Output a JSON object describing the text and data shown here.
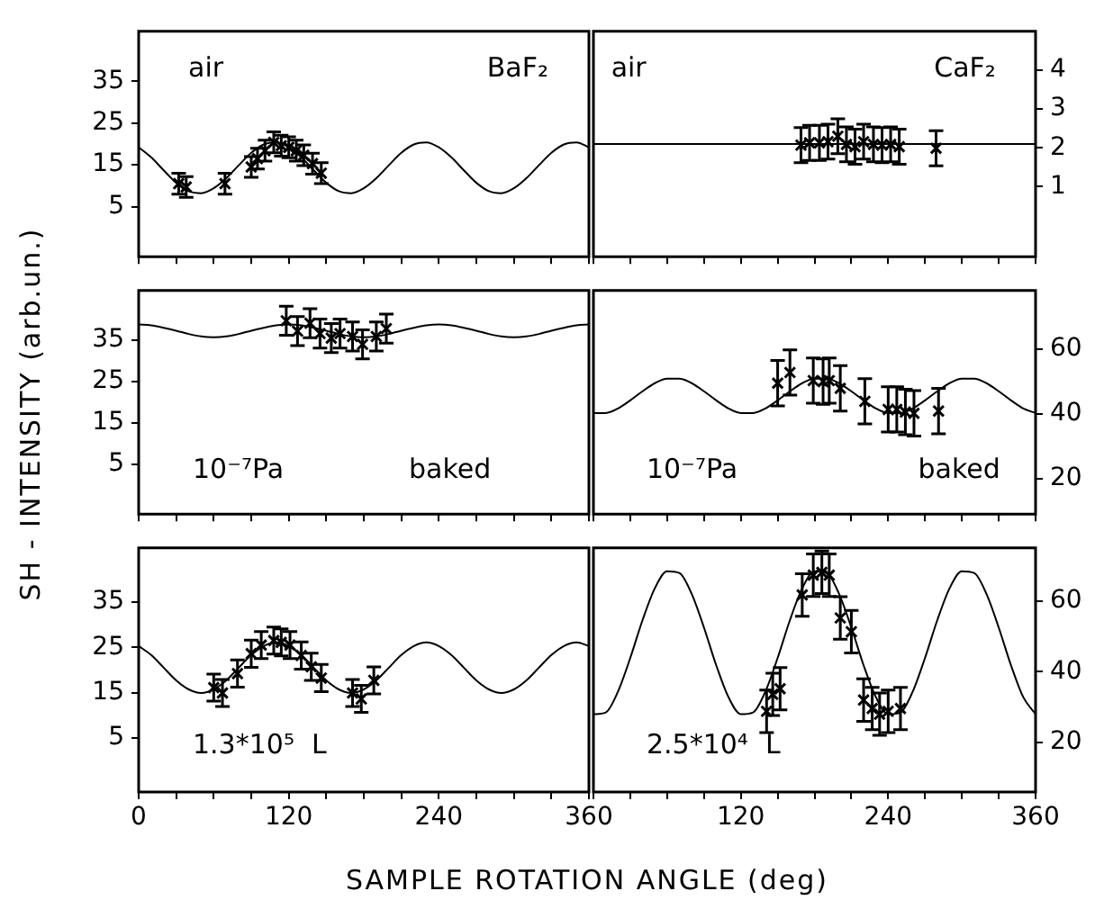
{
  "chart_data": [
    {
      "type": "scatter",
      "xlim": [
        0,
        360
      ],
      "xticks": [
        0,
        {
          "value": 30,
          "label": null
        },
        {
          "value": 60,
          "label": null
        },
        {
          "value": 90,
          "label": null
        },
        120,
        {
          "value": 150,
          "label": null
        },
        {
          "value": 180,
          "label": null
        },
        {
          "value": 210,
          "label": null
        },
        240,
        {
          "value": 270,
          "label": null
        },
        {
          "value": 300,
          "label": null
        },
        {
          "value": 330,
          "label": null
        },
        360
      ],
      "ylim": [
        -7,
        47
      ],
      "yticks": [
        5,
        15,
        25,
        35
      ],
      "tick_labels": "y",
      "annotations": [
        "air",
        "BaF₂"
      ],
      "series": [
        {
          "marker": "cross",
          "color": "#000000",
          "x": [
            32,
            38,
            69,
            90,
            95,
            101,
            108,
            114,
            120,
            126,
            132,
            139,
            146
          ],
          "values": [
            10.5,
            9.7,
            10.5,
            14.5,
            16.5,
            18.4,
            20.4,
            19.6,
            19.2,
            18.4,
            17.3,
            15.3,
            13.0
          ],
          "errors": [
            2.5,
            2.5,
            2.5,
            2.5,
            2.5,
            2.5,
            2.5,
            2.5,
            2.5,
            2.5,
            2.5,
            2.5,
            2.5
          ]
        },
        {
          "type": "line",
          "color": "#000000",
          "x": [
            0,
            10,
            20,
            30,
            40,
            50,
            60,
            70,
            80,
            90,
            100,
            110,
            120,
            130,
            140,
            150,
            160,
            170,
            180,
            190,
            200,
            210,
            220,
            230,
            240,
            250,
            260,
            270,
            280,
            290,
            300,
            310,
            320,
            330,
            340,
            350,
            360
          ],
          "values": [
            19.2,
            16.8,
            13.7,
            10.7,
            8.7,
            8.2,
            9.4,
            11.8,
            14.9,
            17.9,
            19.9,
            20.4,
            19.2,
            16.8,
            13.7,
            10.7,
            8.7,
            8.2,
            9.4,
            11.8,
            14.9,
            17.9,
            19.9,
            20.4,
            19.2,
            16.8,
            13.7,
            10.7,
            8.7,
            8.2,
            9.4,
            11.8,
            14.9,
            17.9,
            19.9,
            20.4,
            19.2
          ]
        }
      ]
    },
    {
      "type": "scatter",
      "xlim": [
        0,
        360
      ],
      "xticks": [
        0,
        {
          "value": 30,
          "label": null
        },
        {
          "value": 60,
          "label": null
        },
        {
          "value": 90,
          "label": null
        },
        120,
        {
          "value": 150,
          "label": null
        },
        {
          "value": 180,
          "label": null
        },
        {
          "value": 210,
          "label": null
        },
        240,
        {
          "value": 270,
          "label": null
        },
        {
          "value": 300,
          "label": null
        },
        {
          "value": 330,
          "label": null
        },
        360
      ],
      "ylim": [
        -0.8,
        5
      ],
      "yticks": [
        1,
        2,
        3,
        4
      ],
      "tick_labels": "y",
      "annotations": [
        "air",
        "CaF₂"
      ],
      "series": [
        {
          "marker": "cross",
          "color": "#000000",
          "x": [
            169,
            176,
            184,
            191,
            199,
            206,
            213,
            220,
            228,
            235,
            242,
            249,
            279
          ],
          "values": [
            2.07,
            2.13,
            2.13,
            2.16,
            2.3,
            2.09,
            2.03,
            2.16,
            2.09,
            2.07,
            2.09,
            2.03,
            1.99
          ],
          "errors": [
            0.45,
            0.45,
            0.45,
            0.45,
            0.45,
            0.45,
            0.45,
            0.45,
            0.45,
            0.45,
            0.45,
            0.45,
            0.45
          ]
        },
        {
          "type": "line",
          "color": "#000000",
          "x": [
            0,
            360
          ],
          "values": [
            2.1,
            2.1
          ]
        }
      ]
    },
    {
      "type": "scatter",
      "xlim": [
        0,
        360
      ],
      "xticks": [
        0,
        {
          "value": 30,
          "label": null
        },
        {
          "value": 60,
          "label": null
        },
        {
          "value": 90,
          "label": null
        },
        120,
        {
          "value": 150,
          "label": null
        },
        {
          "value": 180,
          "label": null
        },
        {
          "value": 210,
          "label": null
        },
        240,
        {
          "value": 270,
          "label": null
        },
        {
          "value": 300,
          "label": null
        },
        {
          "value": 330,
          "label": null
        },
        360
      ],
      "ylim": [
        -7,
        47
      ],
      "yticks": [
        5,
        15,
        25,
        35
      ],
      "tick_labels": "y",
      "ylabel": "SH - INTENSITY  (arb.un.)",
      "annotations": [
        "10⁻⁷Pa",
        "baked"
      ],
      "series": [
        {
          "marker": "cross",
          "color": "#000000",
          "x": [
            118,
            127,
            137,
            145,
            154,
            161,
            171,
            179,
            190,
            198
          ],
          "values": [
            39.7,
            37.2,
            39.1,
            36.6,
            35.5,
            36.6,
            35.9,
            34.0,
            35.9,
            37.8
          ],
          "errors": [
            3.5,
            3.5,
            3.5,
            3.5,
            3.5,
            3.5,
            3.5,
            3.5,
            3.5,
            3.5
          ]
        },
        {
          "type": "line",
          "color": "#000000",
          "x": [
            0,
            10,
            20,
            30,
            40,
            50,
            60,
            70,
            80,
            90,
            100,
            110,
            120,
            130,
            140,
            150,
            160,
            170,
            180,
            190,
            200,
            210,
            220,
            230,
            240,
            250,
            260,
            270,
            280,
            290,
            300,
            310,
            320,
            330,
            340,
            350,
            360
          ],
          "values": [
            38.8,
            38.6,
            38.0,
            37.3,
            36.5,
            35.9,
            35.7,
            35.9,
            36.5,
            37.3,
            38.0,
            38.6,
            38.8,
            38.6,
            38.0,
            37.3,
            36.5,
            35.9,
            35.7,
            35.9,
            36.5,
            37.3,
            38.0,
            38.6,
            38.8,
            38.6,
            38.0,
            37.3,
            36.5,
            35.9,
            35.7,
            35.9,
            36.5,
            37.3,
            38.0,
            38.6,
            38.8
          ]
        }
      ]
    },
    {
      "type": "scatter",
      "xlim": [
        0,
        360
      ],
      "xticks": [
        0,
        {
          "value": 30,
          "label": null
        },
        {
          "value": 60,
          "label": null
        },
        {
          "value": 90,
          "label": null
        },
        120,
        {
          "value": 150,
          "label": null
        },
        {
          "value": 180,
          "label": null
        },
        {
          "value": 210,
          "label": null
        },
        240,
        {
          "value": 270,
          "label": null
        },
        {
          "value": 300,
          "label": null
        },
        {
          "value": 330,
          "label": null
        },
        360
      ],
      "ylim": [
        9,
        78
      ],
      "yticks": [
        20,
        40,
        60
      ],
      "tick_labels": "y",
      "annotations": [
        "10⁻⁷Pa",
        "baked"
      ],
      "series": [
        {
          "marker": "cross",
          "color": "#000000",
          "x": [
            150,
            160,
            179,
            187,
            192,
            201,
            221,
            240,
            247,
            254,
            261,
            281
          ],
          "values": [
            49.4,
            52.7,
            50.2,
            49.9,
            50.2,
            47.8,
            43.8,
            41.3,
            41.3,
            40.5,
            40.1,
            40.8
          ],
          "errors": [
            7,
            7,
            7,
            7,
            7,
            7,
            7,
            7,
            7,
            7,
            7,
            7
          ]
        },
        {
          "type": "line",
          "color": "#000000",
          "x": [
            0,
            10,
            20,
            30,
            40,
            50,
            60,
            70,
            80,
            90,
            100,
            110,
            120,
            130,
            140,
            150,
            160,
            170,
            180,
            190,
            200,
            210,
            220,
            230,
            240,
            250,
            260,
            270,
            280,
            290,
            300,
            310,
            320,
            330,
            340,
            350,
            360
          ],
          "values": [
            40.2,
            40.2,
            41.6,
            44.1,
            46.9,
            49.4,
            50.8,
            50.8,
            49.4,
            46.9,
            44.1,
            41.6,
            40.2,
            40.2,
            41.6,
            44.1,
            46.9,
            49.4,
            50.8,
            50.8,
            49.4,
            46.9,
            44.1,
            41.6,
            40.2,
            40.2,
            41.6,
            44.1,
            46.9,
            49.4,
            50.8,
            50.8,
            49.4,
            46.9,
            44.1,
            41.6,
            40.2
          ]
        }
      ]
    },
    {
      "type": "scatter",
      "xlim": [
        0,
        360
      ],
      "xticks": [
        0,
        {
          "value": 30,
          "label": null
        },
        {
          "value": 60,
          "label": null
        },
        {
          "value": 90,
          "label": null
        },
        120,
        {
          "value": 150,
          "label": null
        },
        {
          "value": 180,
          "label": null
        },
        {
          "value": 210,
          "label": null
        },
        240,
        {
          "value": 270,
          "label": null
        },
        {
          "value": 300,
          "label": null
        },
        {
          "value": 330,
          "label": null
        },
        360
      ],
      "ylim": [
        -7,
        47
      ],
      "yticks": [
        5,
        15,
        25,
        35
      ],
      "xlabel": "SAMPLE ROTATION ANGLE (deg)",
      "annotations": [
        "1.3*10⁵  L"
      ],
      "series": [
        {
          "marker": "cross",
          "color": "#000000",
          "x": [
            60,
            67,
            79,
            90,
            98,
            108,
            114,
            121,
            130,
            138,
            146,
            171,
            178,
            188
          ],
          "values": [
            16.1,
            14.9,
            19.2,
            23.6,
            25.5,
            26.5,
            26.1,
            25.5,
            23.2,
            20.7,
            18.2,
            14.9,
            13.6,
            17.7
          ],
          "errors": [
            3,
            3,
            3,
            3,
            3,
            3,
            3,
            3,
            3,
            3,
            3,
            3,
            3,
            3
          ]
        },
        {
          "type": "line",
          "color": "#000000",
          "x": [
            0,
            10,
            20,
            30,
            40,
            50,
            60,
            70,
            80,
            90,
            100,
            110,
            120,
            130,
            140,
            150,
            160,
            170,
            180,
            190,
            200,
            210,
            220,
            230,
            240,
            250,
            260,
            270,
            280,
            290,
            300,
            310,
            320,
            330,
            340,
            350,
            360
          ],
          "values": [
            25.3,
            23.3,
            20.5,
            17.7,
            15.7,
            14.9,
            15.7,
            17.7,
            20.5,
            23.3,
            25.3,
            26.1,
            25.3,
            23.3,
            20.5,
            17.7,
            15.7,
            14.9,
            15.7,
            17.7,
            20.5,
            23.3,
            25.3,
            26.1,
            25.3,
            23.3,
            20.5,
            17.7,
            15.7,
            14.9,
            15.7,
            17.7,
            20.5,
            23.3,
            25.3,
            26.1,
            25.3
          ]
        }
      ]
    },
    {
      "type": "scatter",
      "xlim": [
        0,
        360
      ],
      "xticks": [
        {
          "value": 0,
          "label": null
        },
        {
          "value": 30,
          "label": null
        },
        {
          "value": 60,
          "label": null
        },
        {
          "value": 90,
          "label": null
        },
        120,
        {
          "value": 150,
          "label": null
        },
        {
          "value": 180,
          "label": null
        },
        {
          "value": 210,
          "label": null
        },
        240,
        {
          "value": 270,
          "label": null
        },
        {
          "value": 300,
          "label": null
        },
        {
          "value": 330,
          "label": null
        },
        360
      ],
      "ylim": [
        6,
        75
      ],
      "yticks": [
        20,
        40,
        60
      ],
      "annotations": [
        "2.5*10⁴  L"
      ],
      "series": [
        {
          "marker": "cross",
          "color": "#000000",
          "x": [
            141,
            146,
            152,
            170,
            179,
            186,
            192,
            201,
            210,
            220,
            227,
            233,
            240,
            250
          ],
          "values": [
            28.8,
            33.6,
            35.2,
            61.7,
            67.3,
            68.1,
            67.3,
            55.2,
            51.3,
            32.0,
            29.6,
            28.0,
            28.8,
            29.6
          ],
          "errors": [
            6,
            6,
            6,
            6,
            6,
            6,
            6,
            6,
            6,
            6,
            6,
            6,
            6,
            6
          ]
        },
        {
          "type": "line",
          "color": "#000000",
          "x": [
            0,
            10,
            20,
            30,
            40,
            50,
            60,
            70,
            80,
            90,
            100,
            110,
            120,
            130,
            140,
            150,
            160,
            170,
            180,
            190,
            200,
            210,
            220,
            230,
            240,
            250,
            260,
            270,
            280,
            290,
            300,
            310,
            320,
            330,
            340,
            350,
            360
          ],
          "values": [
            28.0,
            28.5,
            34.4,
            43.9,
            54.6,
            63.6,
            68.4,
            67.9,
            62.0,
            52.5,
            41.8,
            32.8,
            28.0,
            28.5,
            34.4,
            43.9,
            54.6,
            63.6,
            68.4,
            67.9,
            62.0,
            52.5,
            41.8,
            32.8,
            28.0,
            28.5,
            34.4,
            43.9,
            54.6,
            63.6,
            68.4,
            67.9,
            62.0,
            52.5,
            41.8,
            32.8,
            28.0
          ]
        }
      ]
    }
  ]
}
